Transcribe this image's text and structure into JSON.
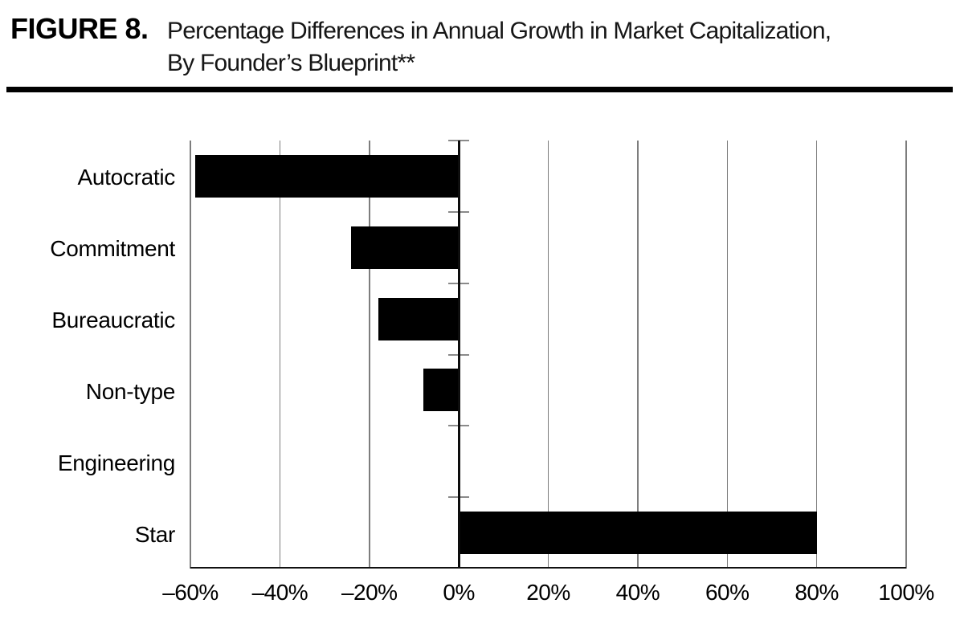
{
  "figure": {
    "label": "FIGURE 8.",
    "title_line1": "Percentage Differences in Annual Growth in Market Capitalization,",
    "title_line2": "By Founder’s Blueprint**"
  },
  "chart_data": {
    "type": "bar",
    "orientation": "horizontal",
    "title": "Percentage Differences in Annual Growth in Market Capitalization, By Founder's Blueprint**",
    "categories": [
      "Autocratic",
      "Commitment",
      "Bureaucratic",
      "Non-type",
      "Engineering",
      "Star"
    ],
    "values": [
      -59,
      -24,
      -18,
      -8,
      0,
      80
    ],
    "unit": "percent",
    "xlabel": "",
    "ylabel": "",
    "xlim": [
      -60,
      100
    ],
    "x_tick_step": 20,
    "x_tick_labels": [
      "–60%",
      "–40%",
      "–20%",
      "0%",
      "20%",
      "40%",
      "60%",
      "80%",
      "100%"
    ],
    "grid": "vertical-gridlines-on",
    "legend": "none",
    "bar_color": "#000000",
    "gridline_color": "#7d7d7d",
    "axis_color": "#0d0d0d",
    "tick_color": "#8a8a8a"
  }
}
